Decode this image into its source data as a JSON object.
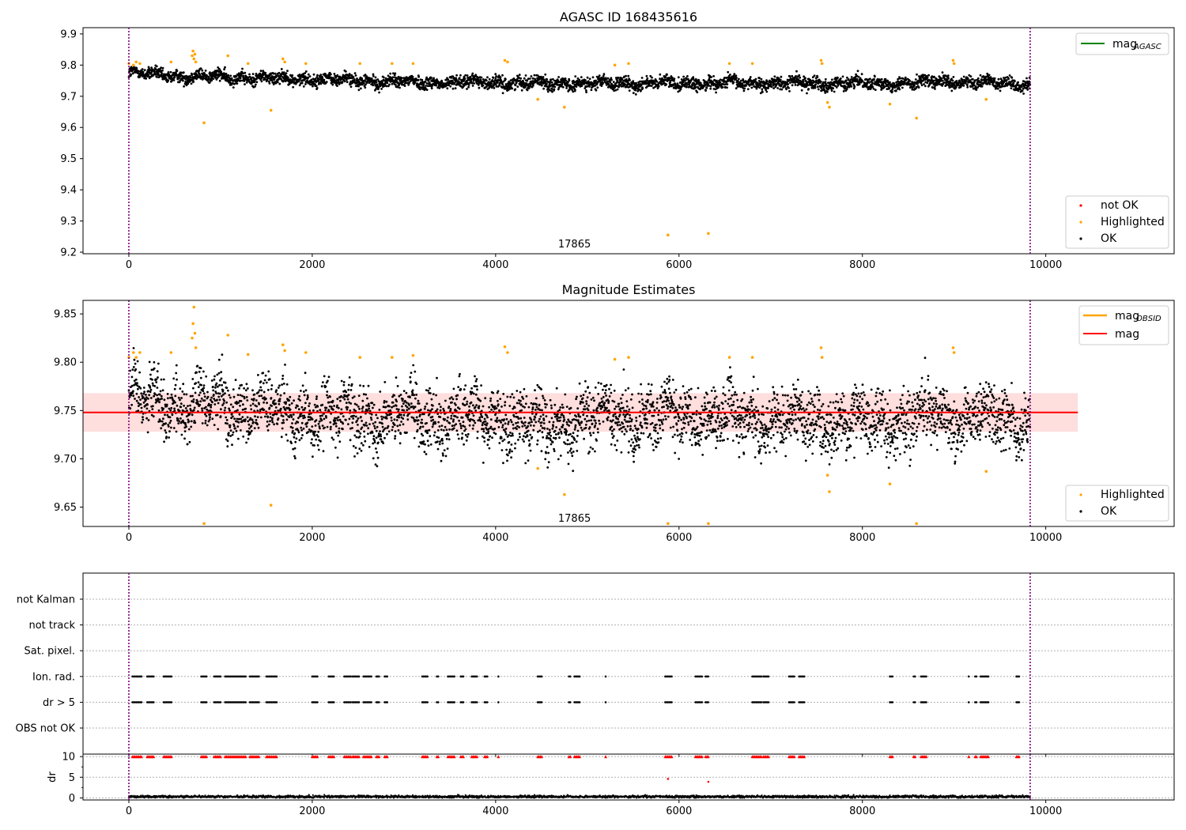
{
  "chart_data": [
    {
      "type": "scatter",
      "title": "AGASC ID 168435616",
      "xlabel": "",
      "ylabel": "",
      "xlim": [
        -500,
        11400
      ],
      "ylim": [
        9.195,
        9.92
      ],
      "x_ticks": [
        "0",
        "2000",
        "4000",
        "6000",
        "8000",
        "10000"
      ],
      "y_ticks": [
        "9.2",
        "9.3",
        "9.4",
        "9.5",
        "9.6",
        "9.7",
        "9.8",
        "9.9"
      ],
      "vlines": [
        0,
        9830
      ],
      "annotation": "17865",
      "annotation_x": 4860,
      "annotation_y": 9.225,
      "legend_lines": [
        {
          "label_main": "mag",
          "label_sub": "AGASC",
          "color": "#008000"
        }
      ],
      "legend_points": [
        {
          "label": "not OK",
          "color": "#ff0000"
        },
        {
          "label": "Highlighted",
          "color": "#ffa500"
        },
        {
          "label": "OK",
          "color": "#000000"
        }
      ],
      "baseline_segments": [
        [
          0,
          9.775
        ],
        [
          500,
          9.765
        ],
        [
          1000,
          9.762
        ],
        [
          1500,
          9.758
        ],
        [
          2000,
          9.755
        ],
        [
          3000,
          9.745
        ],
        [
          4000,
          9.745
        ],
        [
          5000,
          9.74
        ],
        [
          6000,
          9.742
        ],
        [
          7000,
          9.742
        ],
        [
          8000,
          9.742
        ],
        [
          9000,
          9.745
        ],
        [
          9830,
          9.74
        ]
      ],
      "ok_spread": 0.018,
      "highlighted": [
        [
          0,
          9.805
        ],
        [
          50,
          9.8
        ],
        [
          80,
          9.81
        ],
        [
          120,
          9.805
        ],
        [
          460,
          9.81
        ],
        [
          690,
          9.83
        ],
        [
          700,
          9.845
        ],
        [
          710,
          9.82
        ],
        [
          720,
          9.835
        ],
        [
          730,
          9.81
        ],
        [
          820,
          9.615
        ],
        [
          1080,
          9.83
        ],
        [
          1300,
          9.805
        ],
        [
          1550,
          9.655
        ],
        [
          1680,
          9.82
        ],
        [
          1700,
          9.81
        ],
        [
          1930,
          9.805
        ],
        [
          2520,
          9.805
        ],
        [
          2870,
          9.805
        ],
        [
          3100,
          9.805
        ],
        [
          4100,
          9.815
        ],
        [
          4130,
          9.81
        ],
        [
          4460,
          9.69
        ],
        [
          4750,
          9.665
        ],
        [
          5300,
          9.8
        ],
        [
          5450,
          9.805
        ],
        [
          5880,
          9.255
        ],
        [
          6320,
          9.26
        ],
        [
          6550,
          9.805
        ],
        [
          6800,
          9.805
        ],
        [
          7550,
          9.815
        ],
        [
          7560,
          9.805
        ],
        [
          7620,
          9.68
        ],
        [
          7640,
          9.665
        ],
        [
          8300,
          9.675
        ],
        [
          8590,
          9.63
        ],
        [
          8990,
          9.815
        ],
        [
          9000,
          9.805
        ],
        [
          9350,
          9.69
        ]
      ]
    },
    {
      "type": "scatter",
      "title": "Magnitude Estimates",
      "xlabel": "",
      "ylabel": "",
      "xlim": [
        -500,
        11400
      ],
      "ylim": [
        9.63,
        9.864
      ],
      "x_ticks": [
        "0",
        "2000",
        "4000",
        "6000",
        "8000",
        "10000"
      ],
      "y_ticks": [
        "9.65",
        "9.70",
        "9.75",
        "9.80",
        "9.85"
      ],
      "vlines": [
        0,
        9830
      ],
      "annotation": "17865",
      "annotation_x": 4860,
      "annotation_y": 9.638,
      "mean_mag": 9.748,
      "mean_band": [
        9.728,
        9.768
      ],
      "mean_band_x": [
        -500,
        10350
      ],
      "legend_lines": [
        {
          "label_main": "mag",
          "label_sub": "OBSID",
          "color": "#ffa500"
        },
        {
          "label_main": "mag",
          "label_sub": "",
          "color": "#ff0000"
        }
      ],
      "legend_points": [
        {
          "label": "Highlighted",
          "color": "#ffa500"
        },
        {
          "label": "OK",
          "color": "#000000"
        }
      ],
      "baseline_segments": [
        [
          0,
          9.765
        ],
        [
          500,
          9.757
        ],
        [
          1000,
          9.755
        ],
        [
          1500,
          9.752
        ],
        [
          2000,
          9.745
        ],
        [
          3000,
          9.742
        ],
        [
          4000,
          9.745
        ],
        [
          4500,
          9.732
        ],
        [
          5000,
          9.742
        ],
        [
          6000,
          9.745
        ],
        [
          7000,
          9.742
        ],
        [
          8000,
          9.738
        ],
        [
          9000,
          9.745
        ],
        [
          9830,
          9.735
        ]
      ],
      "ok_spread": 0.028,
      "highlighted": [
        [
          0,
          9.805
        ],
        [
          50,
          9.81
        ],
        [
          80,
          9.805
        ],
        [
          120,
          9.81
        ],
        [
          460,
          9.81
        ],
        [
          690,
          9.825
        ],
        [
          700,
          9.84
        ],
        [
          710,
          9.857
        ],
        [
          720,
          9.83
        ],
        [
          730,
          9.815
        ],
        [
          820,
          9.633
        ],
        [
          1080,
          9.828
        ],
        [
          1300,
          9.808
        ],
        [
          1550,
          9.652
        ],
        [
          1680,
          9.818
        ],
        [
          1700,
          9.812
        ],
        [
          1930,
          9.81
        ],
        [
          2520,
          9.805
        ],
        [
          2870,
          9.805
        ],
        [
          3100,
          9.807
        ],
        [
          4100,
          9.816
        ],
        [
          4130,
          9.81
        ],
        [
          4460,
          9.69
        ],
        [
          4750,
          9.663
        ],
        [
          5300,
          9.803
        ],
        [
          5450,
          9.805
        ],
        [
          5880,
          9.633
        ],
        [
          6320,
          9.633
        ],
        [
          6550,
          9.805
        ],
        [
          6800,
          9.805
        ],
        [
          7550,
          9.815
        ],
        [
          7560,
          9.805
        ],
        [
          7620,
          9.683
        ],
        [
          7640,
          9.666
        ],
        [
          8300,
          9.674
        ],
        [
          8590,
          9.633
        ],
        [
          8990,
          9.815
        ],
        [
          9000,
          9.81
        ],
        [
          9350,
          9.687
        ]
      ]
    },
    {
      "type": "scatter",
      "title": "",
      "xlabel": "",
      "ylabel": "",
      "xlim": [
        -500,
        11400
      ],
      "x_ticks": [
        "0",
        "2000",
        "4000",
        "6000",
        "8000",
        "10000"
      ],
      "flag_labels": [
        "not Kalman",
        "not track",
        "Sat. pixel.",
        "Ion. rad.",
        "dr > 5",
        "OBS not OK"
      ],
      "vlines": [
        0,
        9830
      ],
      "ion_rad_clusters": [
        [
          40,
          150
        ],
        [
          200,
          280
        ],
        [
          380,
          470
        ],
        [
          790,
          850
        ],
        [
          930,
          1000
        ],
        [
          1050,
          1280
        ],
        [
          1320,
          1420
        ],
        [
          1500,
          1620
        ],
        [
          2000,
          2060
        ],
        [
          2180,
          2240
        ],
        [
          2350,
          2420
        ],
        [
          2440,
          2520
        ],
        [
          2560,
          2650
        ],
        [
          2700,
          2740
        ],
        [
          2790,
          2830
        ],
        [
          3200,
          3260
        ],
        [
          3360,
          3380
        ],
        [
          3480,
          3560
        ],
        [
          3620,
          3660
        ],
        [
          3740,
          3800
        ],
        [
          3880,
          3920
        ],
        [
          4030,
          4040
        ],
        [
          4460,
          4510
        ],
        [
          4800,
          4820
        ],
        [
          4860,
          4920
        ],
        [
          5200,
          5210
        ],
        [
          5850,
          5930
        ],
        [
          6180,
          6260
        ],
        [
          6290,
          6330
        ],
        [
          6800,
          6900
        ],
        [
          6920,
          6980
        ],
        [
          7200,
          7260
        ],
        [
          7310,
          7370
        ],
        [
          8300,
          8330
        ],
        [
          8560,
          8580
        ],
        [
          8640,
          8700
        ],
        [
          9160,
          9170
        ],
        [
          9230,
          9250
        ],
        [
          9290,
          9380
        ],
        [
          9680,
          9720
        ]
      ]
    },
    {
      "type": "scatter",
      "title": "",
      "xlabel": "",
      "ylabel": "dr",
      "xlim": [
        -500,
        11400
      ],
      "ylim": [
        -0.5,
        10.6
      ],
      "x_ticks": [
        "0",
        "2000",
        "4000",
        "6000",
        "8000",
        "10000"
      ],
      "y_ticks": [
        "0",
        "5",
        "10"
      ],
      "vlines": [
        0,
        9830
      ],
      "dr_mean": 0.3,
      "dr_spread": 0.3,
      "dr_outliers": [
        [
          5880,
          4.6
        ],
        [
          6320,
          3.9
        ]
      ]
    }
  ]
}
